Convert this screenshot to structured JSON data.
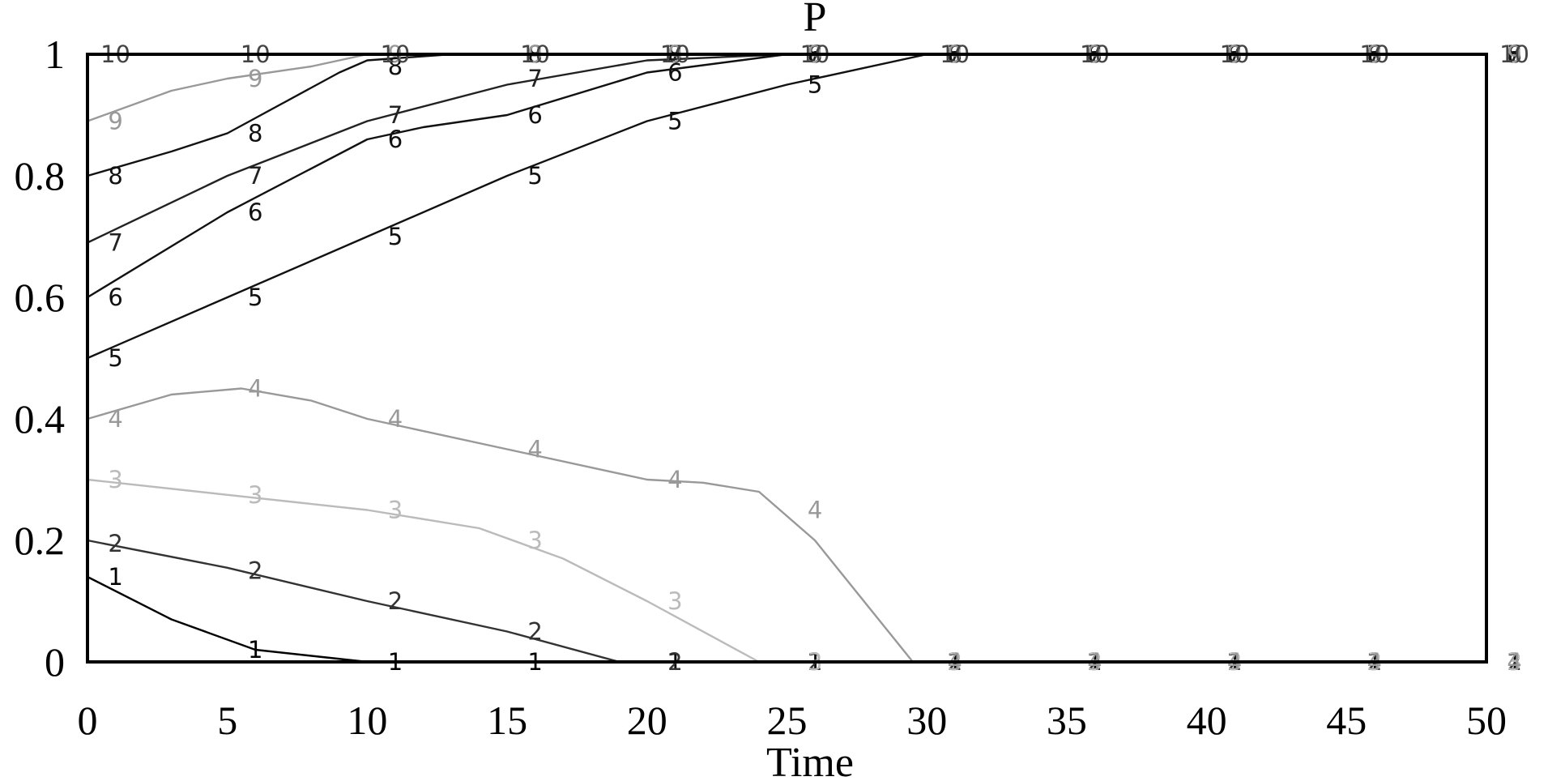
{
  "chart_data": {
    "type": "line",
    "title": "P",
    "xlabel": "Time",
    "ylabel": "",
    "xlim": [
      0,
      50
    ],
    "ylim": [
      0,
      1
    ],
    "xticks": [
      "0",
      "5",
      "10",
      "15",
      "20",
      "25",
      "30",
      "35",
      "40",
      "45",
      "50"
    ],
    "yticks": [
      "0",
      "0.2",
      "0.4",
      "0.6",
      "0.8",
      "1"
    ],
    "grid": false,
    "label_x": [
      1,
      6,
      11,
      16,
      21,
      26,
      31,
      36,
      41,
      46,
      51
    ],
    "series": [
      {
        "name": "1",
        "color": "#000000",
        "x": [
          0,
          3,
          6,
          8,
          10,
          50
        ],
        "y": [
          0.14,
          0.07,
          0.02,
          0.01,
          0,
          0
        ],
        "label_y": [
          0.14,
          0.02,
          0,
          0,
          0,
          0,
          0,
          0,
          0,
          0,
          0
        ]
      },
      {
        "name": "2",
        "color": "#333333",
        "x": [
          0,
          5,
          10,
          15,
          19,
          50
        ],
        "y": [
          0.2,
          0.155,
          0.1,
          0.05,
          0,
          0
        ],
        "label_y": [
          0.195,
          0.15,
          0.1,
          0.05,
          0,
          0,
          0,
          0,
          0,
          0,
          0
        ]
      },
      {
        "name": "3",
        "color": "#bbbbbb",
        "x": [
          0,
          5,
          10,
          14,
          17,
          20,
          24,
          50
        ],
        "y": [
          0.3,
          0.275,
          0.25,
          0.22,
          0.17,
          0.1,
          0,
          0
        ],
        "label_y": [
          0.3,
          0.275,
          0.25,
          0.2,
          0.1,
          0,
          0,
          0,
          0,
          0,
          0
        ]
      },
      {
        "name": "4",
        "color": "#999999",
        "x": [
          0,
          3,
          5.5,
          8,
          10,
          15,
          20,
          22,
          24,
          26,
          29.5,
          50
        ],
        "y": [
          0.4,
          0.44,
          0.45,
          0.43,
          0.4,
          0.35,
          0.3,
          0.295,
          0.28,
          0.2,
          0,
          0
        ],
        "label_y": [
          0.4,
          0.45,
          0.4,
          0.35,
          0.3,
          0.25,
          0,
          0,
          0,
          0,
          0
        ]
      },
      {
        "name": "5",
        "color": "#111111",
        "x": [
          0,
          5,
          10,
          15,
          20,
          25,
          30,
          50
        ],
        "y": [
          0.5,
          0.6,
          0.7,
          0.8,
          0.89,
          0.95,
          1,
          1
        ],
        "label_y": [
          0.5,
          0.6,
          0.7,
          0.8,
          0.89,
          0.95,
          1,
          1,
          1,
          1,
          1
        ]
      },
      {
        "name": "6",
        "color": "#111111",
        "x": [
          0,
          5,
          10,
          12,
          15,
          20,
          25,
          50
        ],
        "y": [
          0.6,
          0.74,
          0.86,
          0.88,
          0.9,
          0.97,
          1,
          1
        ],
        "label_y": [
          0.6,
          0.74,
          0.86,
          0.9,
          0.97,
          1,
          1,
          1,
          1,
          1,
          1
        ]
      },
      {
        "name": "7",
        "color": "#222222",
        "x": [
          0,
          5,
          10,
          15,
          20,
          25,
          50
        ],
        "y": [
          0.69,
          0.8,
          0.89,
          0.95,
          0.99,
          1,
          1
        ],
        "label_y": [
          0.69,
          0.8,
          0.9,
          0.96,
          1,
          1,
          1,
          1,
          1,
          1,
          1
        ]
      },
      {
        "name": "8",
        "color": "#111111",
        "x": [
          0,
          3,
          5,
          7,
          9,
          10,
          13,
          50
        ],
        "y": [
          0.8,
          0.84,
          0.87,
          0.92,
          0.97,
          0.99,
          1,
          1
        ],
        "label_y": [
          0.8,
          0.87,
          0.98,
          1,
          1,
          1,
          1,
          1,
          1,
          1,
          1
        ]
      },
      {
        "name": "9",
        "color": "#999999",
        "x": [
          0,
          3,
          5,
          8,
          10,
          13,
          50
        ],
        "y": [
          0.89,
          0.94,
          0.96,
          0.98,
          1,
          1,
          1
        ],
        "label_y": [
          0.89,
          0.96,
          1,
          1,
          1,
          1,
          1,
          1,
          1,
          1,
          1
        ]
      },
      {
        "name": "10",
        "color": "#444444",
        "x": [
          0,
          50
        ],
        "y": [
          1,
          1
        ],
        "label_y": [
          1,
          1,
          1,
          1,
          1,
          1,
          1,
          1,
          1,
          1,
          1
        ]
      }
    ]
  }
}
